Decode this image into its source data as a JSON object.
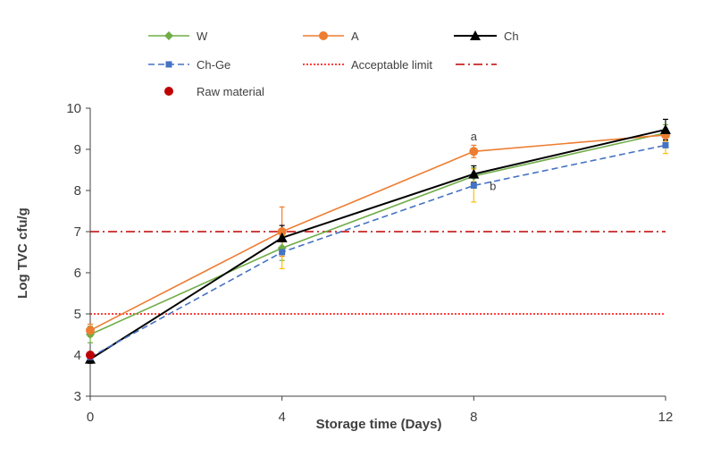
{
  "chart_data": {
    "type": "line",
    "title": "",
    "xlabel": "Storage time (Days)",
    "ylabel": "Log TVC cfu/g",
    "x": [
      0,
      4,
      8,
      12
    ],
    "x_ticks": [
      "0",
      "4",
      "8",
      "12"
    ],
    "y_ticks": [
      "3",
      "4",
      "5",
      "6",
      "7",
      "8",
      "9",
      "10"
    ],
    "xlim": [
      0,
      12
    ],
    "ylim": [
      3,
      10
    ],
    "grid": false,
    "legend_position": "top",
    "series": [
      {
        "name": "W",
        "color": "#70AD47",
        "marker": "diamond",
        "dash": "solid",
        "values": [
          4.5,
          6.6,
          8.35,
          9.4
        ],
        "errors": [
          0.2,
          0.3,
          0.2,
          0.2
        ]
      },
      {
        "name": "A",
        "color": "#ED7D31",
        "marker": "circle",
        "dash": "solid",
        "values": [
          4.6,
          7.0,
          8.95,
          9.35
        ],
        "errors": [
          0.15,
          0.6,
          0.15,
          0.15
        ]
      },
      {
        "name": "Ch",
        "color": "#000000",
        "marker": "triangle",
        "dash": "solid",
        "values": [
          3.9,
          6.85,
          8.4,
          9.48
        ],
        "errors": [
          0.1,
          0.3,
          0.2,
          0.25
        ]
      },
      {
        "name": "Ch-Ge",
        "color": "#4472C4",
        "marker": "square",
        "dash": "dashed",
        "values": [
          3.95,
          6.5,
          8.12,
          9.1
        ],
        "errors": [
          0.1,
          0.4,
          0.4,
          0.2
        ]
      }
    ],
    "raw_material": {
      "name": "Raw material",
      "x": 0,
      "y": 4.0,
      "color": "#C00000"
    },
    "acceptable_limit": {
      "name": "Acceptable limit",
      "y": 5,
      "color": "#FF0000",
      "dash": "dotted"
    },
    "limit_line_2": {
      "y": 7,
      "color": "#C00000",
      "dash": "dash-dot"
    },
    "annotations": [
      {
        "text": "a",
        "x": 8,
        "y": 9.3
      },
      {
        "text": "b",
        "x": 8.4,
        "y": 8.1
      }
    ]
  }
}
